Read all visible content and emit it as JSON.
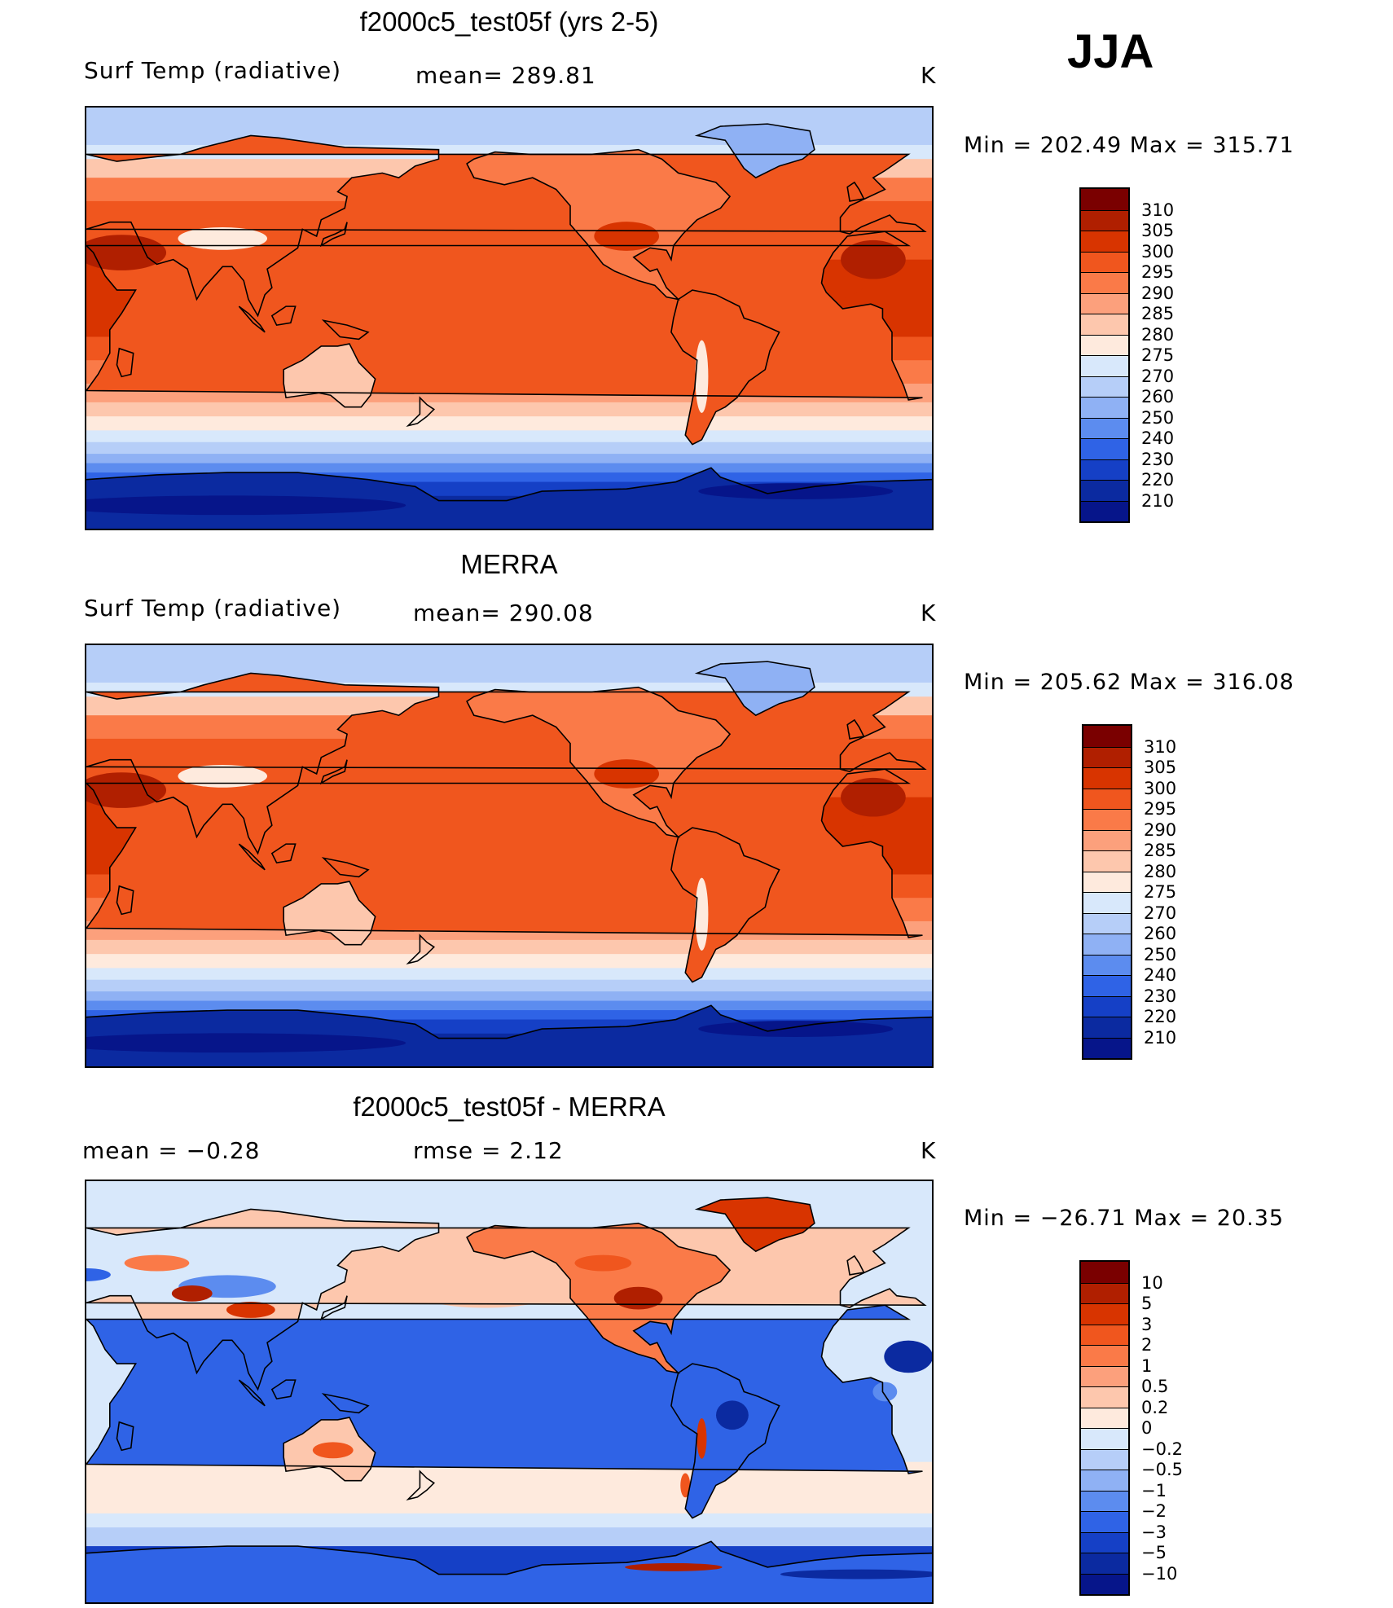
{
  "season": "JJA",
  "units": "K",
  "panels": [
    {
      "id": "model",
      "title": "f2000c5_test05f (yrs 2-5)",
      "left_label": "Surf Temp (radiative)",
      "center_label": "mean= 289.81",
      "right_label": "K",
      "range_text": "Min = 202.49 Max = 315.71",
      "map_name": "model-surface-temperature-map"
    },
    {
      "id": "obs",
      "title": "MERRA",
      "left_label": "Surf Temp (radiative)",
      "center_label": "mean= 290.08",
      "right_label": "K",
      "range_text": "Min = 205.62 Max = 316.08",
      "map_name": "merra-surface-temperature-map"
    },
    {
      "id": "diff",
      "title": "f2000c5_test05f - MERRA",
      "left_label": "mean =   −0.28",
      "center_label": "rmse =    2.12",
      "right_label": "K",
      "range_text": "Min = −26.71 Max =  20.35",
      "map_name": "difference-map"
    }
  ],
  "chart_data": [
    {
      "type": "heatmap",
      "title": "f2000c5_test05f (yrs 2-5)",
      "variable": "Surf Temp (radiative)",
      "season": "JJA",
      "units": "K",
      "mean": 289.81,
      "min": 202.49,
      "max": 315.71,
      "colorbar_levels": [
        "310",
        "305",
        "300",
        "295",
        "290",
        "285",
        "280",
        "275",
        "270",
        "260",
        "250",
        "240",
        "230",
        "220",
        "210"
      ],
      "colors": [
        "#7a0000",
        "#b01f00",
        "#d83400",
        "#f0561e",
        "#fa7a48",
        "#fca07c",
        "#fdc7ad",
        "#feeadd",
        "#d8e8fb",
        "#b6cef8",
        "#8fb1f4",
        "#5c8cef",
        "#2f63e6",
        "#1540c6",
        "#0b2aa0",
        "#06158a"
      ]
    },
    {
      "type": "heatmap",
      "title": "MERRA",
      "variable": "Surf Temp (radiative)",
      "season": "JJA",
      "units": "K",
      "mean": 290.08,
      "min": 205.62,
      "max": 316.08,
      "colorbar_levels": [
        "310",
        "305",
        "300",
        "295",
        "290",
        "285",
        "280",
        "275",
        "270",
        "260",
        "250",
        "240",
        "230",
        "220",
        "210"
      ],
      "colors": [
        "#7a0000",
        "#b01f00",
        "#d83400",
        "#f0561e",
        "#fa7a48",
        "#fca07c",
        "#fdc7ad",
        "#feeadd",
        "#d8e8fb",
        "#b6cef8",
        "#8fb1f4",
        "#5c8cef",
        "#2f63e6",
        "#1540c6",
        "#0b2aa0",
        "#06158a"
      ]
    },
    {
      "type": "heatmap",
      "title": "f2000c5_test05f - MERRA",
      "season": "JJA",
      "units": "K",
      "mean": -0.28,
      "rmse": 2.12,
      "min": -26.71,
      "max": 20.35,
      "colorbar_levels": [
        "10",
        "5",
        "3",
        "2",
        "1",
        "0.5",
        "0.2",
        "0",
        "−0.2",
        "−0.5",
        "−1",
        "−2",
        "−3",
        "−5",
        "−10"
      ],
      "colors": [
        "#7a0000",
        "#b01f00",
        "#d83400",
        "#f0561e",
        "#fa7a48",
        "#fca07c",
        "#fdc7ad",
        "#feeadd",
        "#d8e8fb",
        "#b6cef8",
        "#8fb1f4",
        "#5c8cef",
        "#2f63e6",
        "#1540c6",
        "#0b2aa0",
        "#06158a"
      ]
    }
  ]
}
